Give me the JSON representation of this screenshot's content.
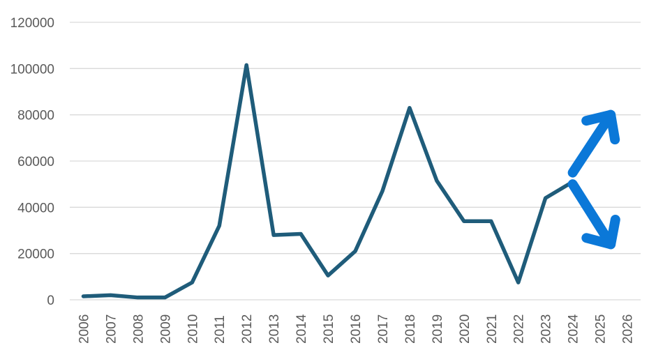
{
  "chart_data": {
    "type": "line",
    "title": "",
    "xlabel": "",
    "ylabel": "",
    "categories": [
      "2006",
      "2007",
      "2008",
      "2009",
      "2010",
      "2011",
      "2012",
      "2013",
      "2014",
      "2015",
      "2016",
      "2017",
      "2018",
      "2019",
      "2020",
      "2021",
      "2022",
      "2023",
      "2024",
      "2025",
      "2026"
    ],
    "series": [
      {
        "color": "#1f5c7a",
        "values": [
          1500,
          2000,
          1000,
          1000,
          7500,
          32000,
          101500,
          28000,
          28500,
          10500,
          21000,
          47000,
          83000,
          51500,
          34000,
          34000,
          7500,
          44000,
          51000,
          null,
          null
        ]
      }
    ],
    "ylim": [
      0,
      120000
    ],
    "yticks": [
      "0",
      "20000",
      "40000",
      "60000",
      "80000",
      "100000",
      "120000"
    ],
    "grid": true,
    "legend": "none",
    "annotations": [
      {
        "kind": "arrow",
        "direction": "up-right",
        "from": [
          "2024",
          55000
        ],
        "to": [
          "2025",
          80000
        ],
        "color": "#0b78d8"
      },
      {
        "kind": "arrow",
        "direction": "down-right",
        "from": [
          "2024",
          50000
        ],
        "to": [
          "2025",
          24000
        ],
        "color": "#0b78d8"
      }
    ]
  }
}
